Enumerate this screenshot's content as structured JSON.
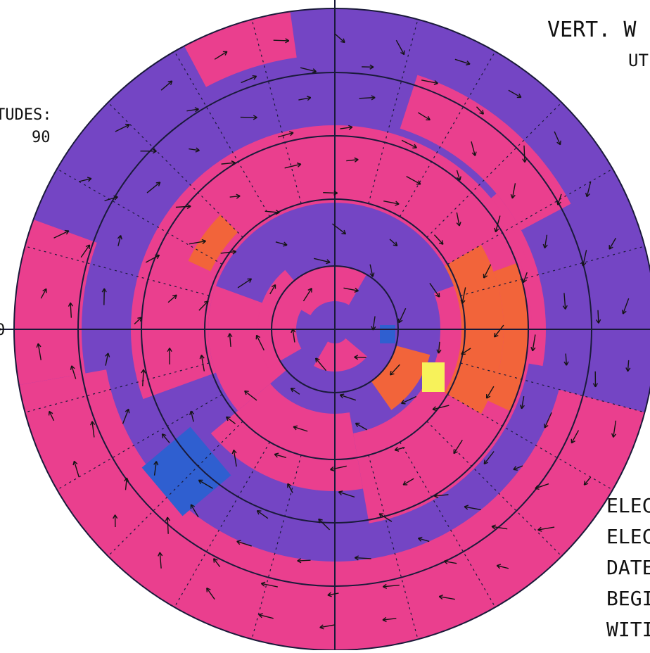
{
  "figure": {
    "title": "VERT. W",
    "time_label": "UT",
    "latitudes_label": "TUDES:",
    "latitude_value": "90",
    "left_axis_label": "0",
    "info_lines": [
      "ELEC",
      "ELEC",
      "DATE",
      "BEGI",
      "WITI"
    ]
  }
}
